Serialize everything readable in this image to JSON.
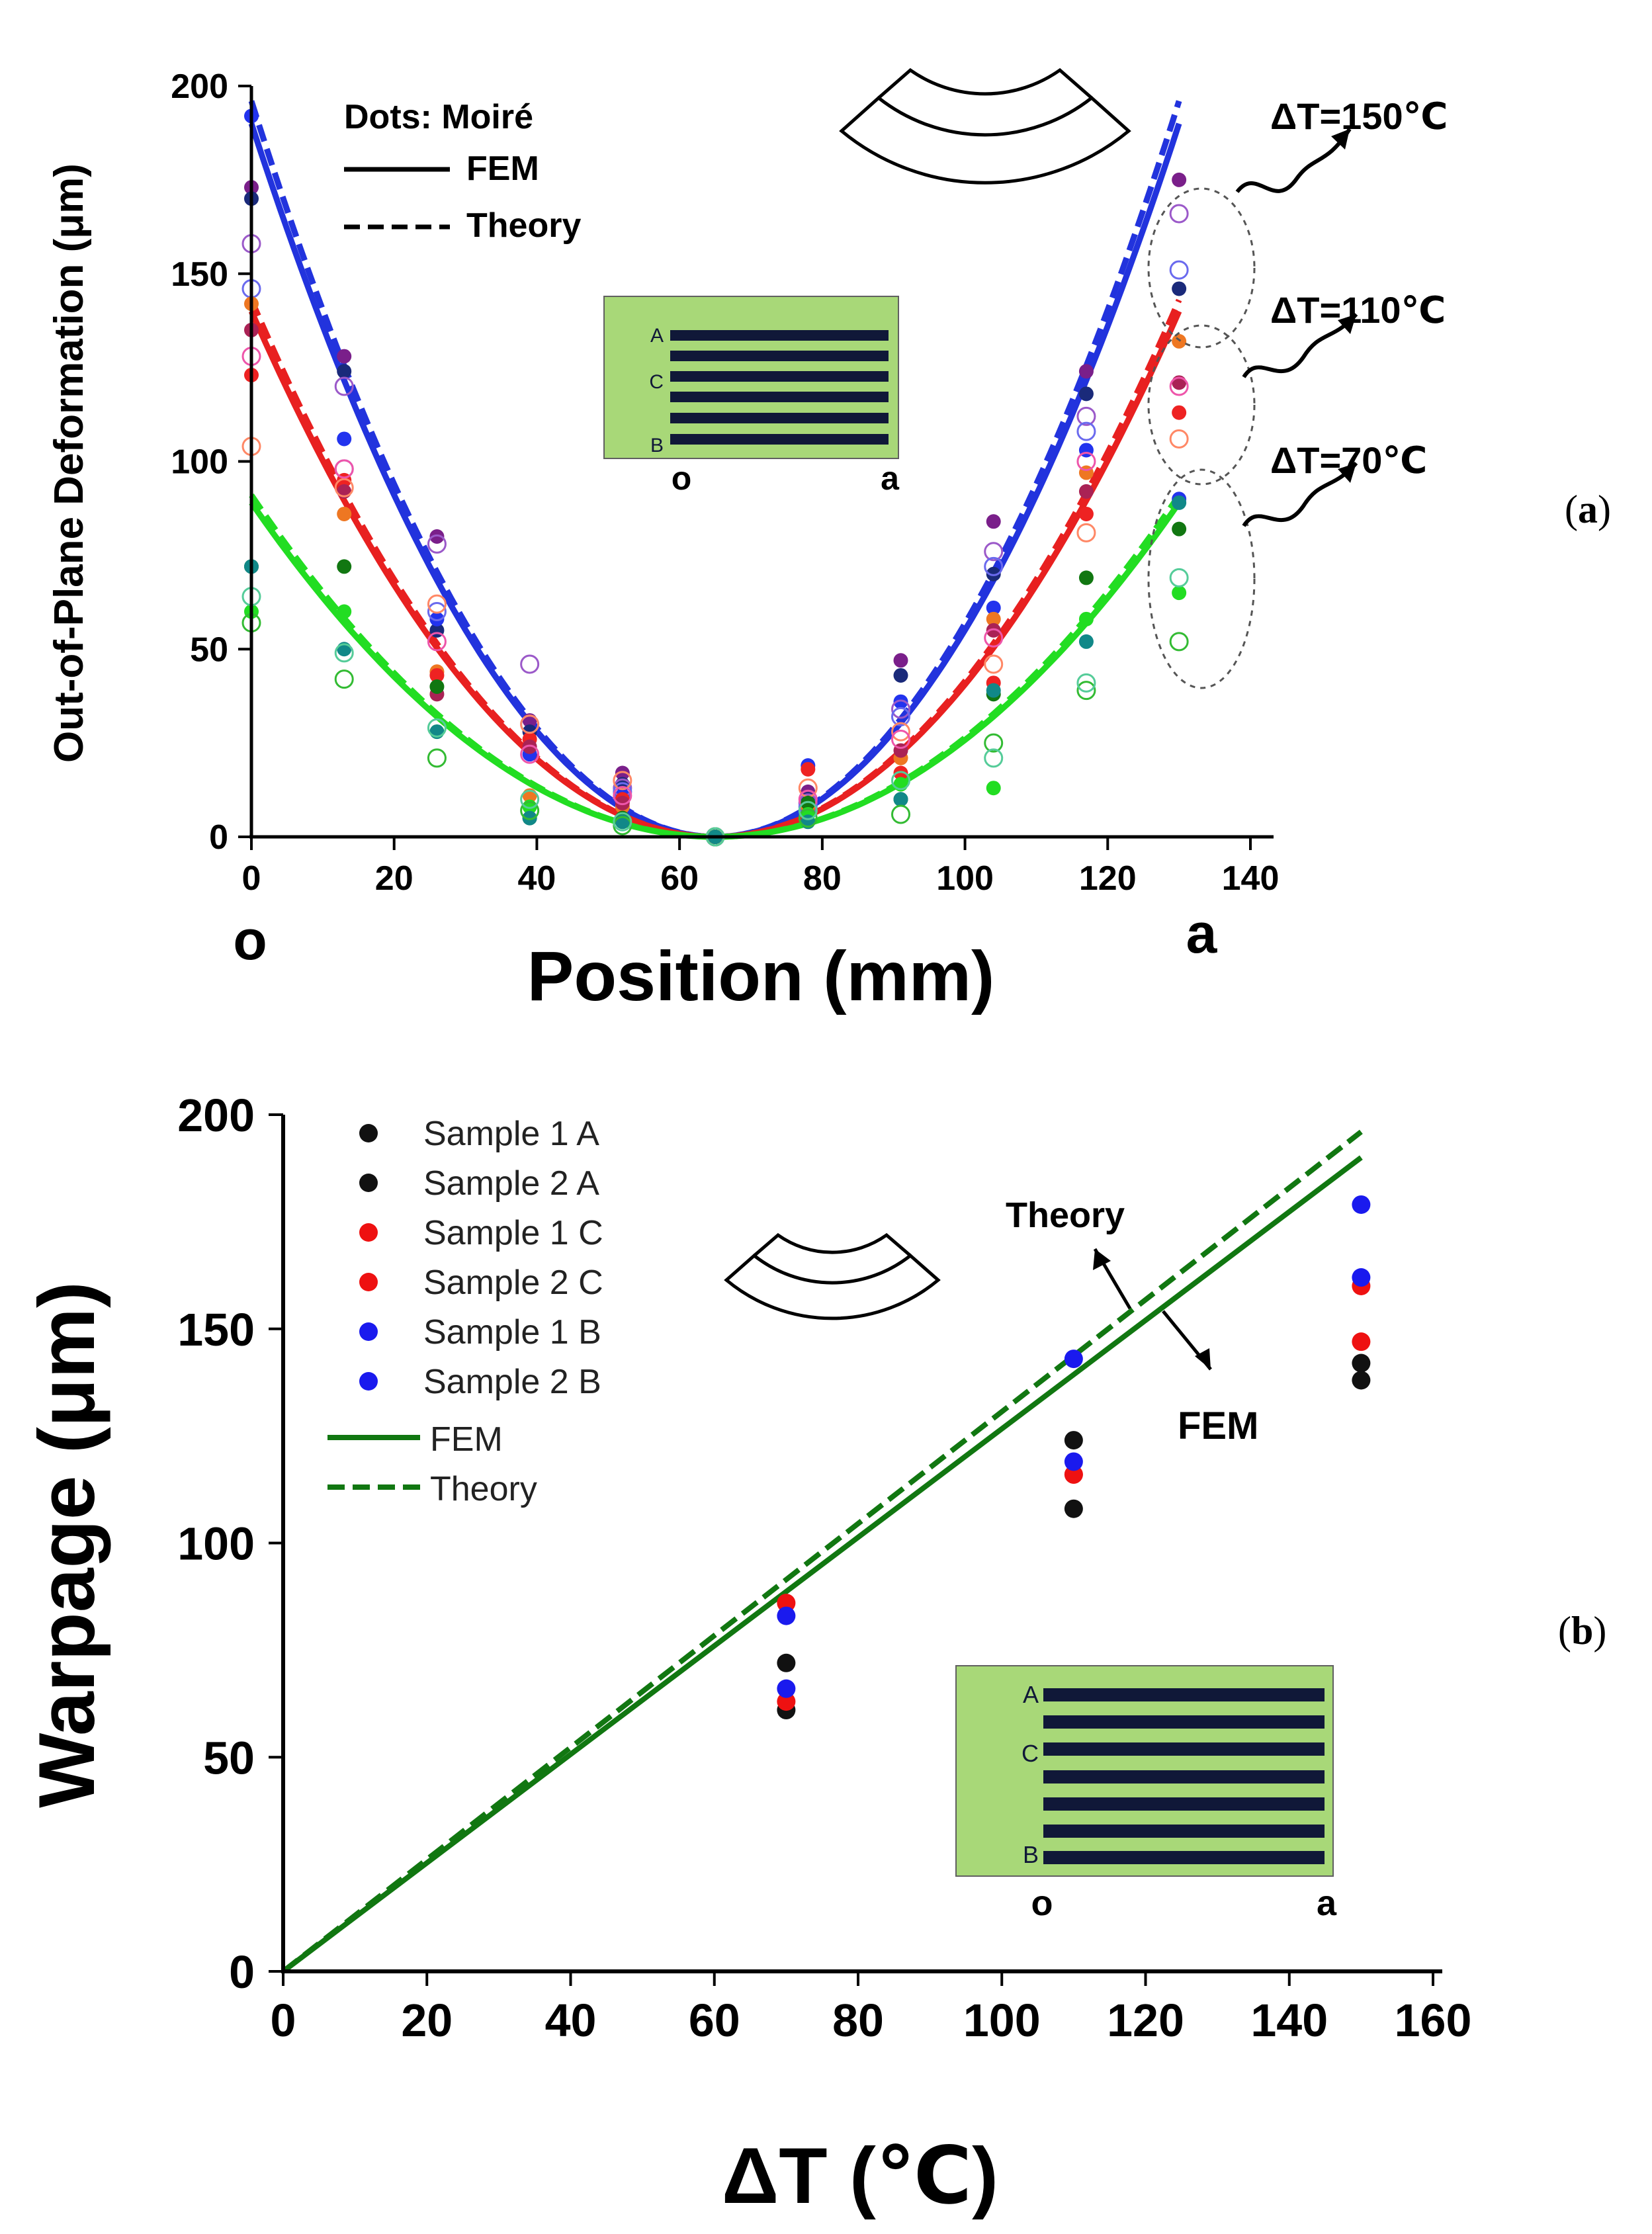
{
  "colors": {
    "c150": "#2233dd",
    "c110": "#e82020",
    "c70": "#22dd22",
    "dark_green": "#117711",
    "panel_green": "#a8d878",
    "stripe": "#101838",
    "s1a": "#111111",
    "s2a": "#111111",
    "s1c": "#ee1111",
    "s2c": "#ee1111",
    "s1b": "#1a1aee",
    "s2b": "#1a1aee"
  },
  "panels": {
    "a": {
      "label": "(a)",
      "label_bold": "a"
    },
    "b": {
      "label": "(b)",
      "label_bold": "b"
    }
  },
  "chart_data": [
    {
      "type": "scatter",
      "subtype": "scatter with fitted curves",
      "panel": "a",
      "xlabel": "Position (mm)",
      "ylabel": "Out-of-Plane Deformation (μm)",
      "xlim": [
        0,
        140
      ],
      "ylim": [
        0,
        200
      ],
      "xticks": [
        0,
        20,
        40,
        60,
        80,
        100,
        120,
        140
      ],
      "yticks": [
        0,
        50,
        100,
        150,
        200
      ],
      "x_end_labels": {
        "start": "o",
        "end": "a"
      },
      "legend": {
        "dots": "Dots: Moiré",
        "solid": "FEM",
        "dashed": "Theory"
      },
      "curve_labels": [
        "ΔT=150℃",
        "ΔT=110℃",
        "ΔT=70℃"
      ],
      "inset": {
        "rows": [
          "A",
          "C",
          "B"
        ],
        "ends": [
          "o",
          "a"
        ]
      },
      "x_positions": [
        0,
        13,
        26,
        39,
        52,
        65,
        78,
        91,
        104,
        117,
        130
      ],
      "curves": [
        {
          "name": "ΔT=150℃",
          "color_key": "c150",
          "vertex": 65,
          "fem": 190,
          "theory": 196
        },
        {
          "name": "ΔT=110℃",
          "color_key": "c110",
          "vertex": 65,
          "fem": 140,
          "theory": 143
        },
        {
          "name": "ΔT=70℃",
          "color_key": "c70",
          "vertex": 65,
          "fem": 89,
          "theory": 91
        }
      ],
      "moire_points": [
        {
          "group": "150-filled",
          "color": "#7a1f8a",
          "filled": true,
          "y": [
            173,
            128,
            80,
            31,
            17,
            0,
            12,
            47,
            84,
            124,
            175
          ]
        },
        {
          "group": "150-filled",
          "color": "#1a2a7a",
          "filled": true,
          "y": [
            170,
            124,
            55,
            28,
            14,
            0,
            10,
            43,
            70,
            118,
            146
          ]
        },
        {
          "group": "150-filled",
          "color": "#2233ee",
          "filled": true,
          "y": [
            192,
            106,
            58,
            22,
            11,
            0,
            19,
            36,
            61,
            103,
            90
          ]
        },
        {
          "group": "150-open",
          "color": "#9b59c9",
          "filled": false,
          "y": [
            158,
            120,
            78,
            46,
            13,
            0,
            9,
            34,
            76,
            112,
            166
          ]
        },
        {
          "group": "150-open",
          "color": "#6a6aee",
          "filled": false,
          "y": [
            146,
            98,
            60,
            30,
            12,
            0,
            8,
            32,
            72,
            108,
            151
          ]
        },
        {
          "group": "110-filled",
          "color": "#ee7722",
          "filled": true,
          "y": [
            142,
            86,
            44,
            11,
            8,
            0,
            8,
            21,
            58,
            97,
            132
          ]
        },
        {
          "group": "110-filled",
          "color": "#ee2222",
          "filled": true,
          "y": [
            123,
            95,
            43,
            26,
            10,
            0,
            18,
            17,
            41,
            86,
            113
          ]
        },
        {
          "group": "110-filled",
          "color": "#aa2255",
          "filled": true,
          "y": [
            135,
            92,
            38,
            24,
            9,
            0,
            6,
            23,
            55,
            92,
            121
          ]
        },
        {
          "group": "110-open",
          "color": "#ff8866",
          "filled": false,
          "y": [
            104,
            93,
            62,
            30,
            15,
            0,
            13,
            28,
            46,
            81,
            106
          ]
        },
        {
          "group": "110-open",
          "color": "#ee55aa",
          "filled": false,
          "y": [
            128,
            98,
            52,
            22,
            11,
            0,
            10,
            26,
            53,
            100,
            120
          ]
        },
        {
          "group": "70-filled",
          "color": "#117711",
          "filled": true,
          "y": [
            72,
            72,
            40,
            5,
            5,
            0,
            9,
            10,
            38,
            69,
            82
          ]
        },
        {
          "group": "70-filled",
          "color": "#22dd22",
          "filled": true,
          "y": [
            60,
            60,
            28,
            8,
            4,
            0,
            6,
            14,
            13,
            58,
            65
          ]
        },
        {
          "group": "70-filled",
          "color": "#118888",
          "filled": true,
          "y": [
            72,
            50,
            28,
            5,
            4,
            0,
            4,
            10,
            39,
            52,
            89
          ]
        },
        {
          "group": "70-open",
          "color": "#33bb33",
          "filled": false,
          "y": [
            57,
            42,
            21,
            7,
            3,
            0,
            5,
            6,
            25,
            39,
            52
          ]
        },
        {
          "group": "70-open",
          "color": "#55cc99",
          "filled": false,
          "y": [
            64,
            49,
            29,
            10,
            4,
            0,
            7,
            15,
            21,
            41,
            69
          ]
        }
      ]
    },
    {
      "type": "scatter",
      "subtype": "scatter with lines",
      "panel": "b",
      "xlabel": "ΔT (℃)",
      "ylabel": "Warpage (μm)",
      "xlim": [
        0,
        160
      ],
      "ylim": [
        0,
        200
      ],
      "xticks": [
        0,
        20,
        40,
        60,
        80,
        100,
        120,
        140,
        160
      ],
      "yticks": [
        0,
        50,
        100,
        150,
        200
      ],
      "series": [
        {
          "name": "Sample 1 A",
          "color_key": "s1a",
          "x": [
            70,
            110,
            150
          ],
          "y": [
            72,
            124,
            142
          ]
        },
        {
          "name": "Sample 2 A",
          "color_key": "s2a",
          "x": [
            70,
            110,
            150
          ],
          "y": [
            61,
            108,
            138
          ]
        },
        {
          "name": "Sample 1 C",
          "color_key": "s1c",
          "x": [
            70,
            110,
            150
          ],
          "y": [
            86,
            116,
            160
          ]
        },
        {
          "name": "Sample 2 C",
          "color_key": "s2c",
          "x": [
            70,
            110,
            150
          ],
          "y": [
            63,
            116,
            147
          ]
        },
        {
          "name": "Sample 1 B",
          "color_key": "s1b",
          "x": [
            70,
            110,
            150
          ],
          "y": [
            83,
            143,
            179
          ]
        },
        {
          "name": "Sample 2 B",
          "color_key": "s2b",
          "x": [
            70,
            110,
            150
          ],
          "y": [
            66,
            119,
            162
          ]
        }
      ],
      "lines": [
        {
          "name": "FEM",
          "style": "solid",
          "x": [
            0,
            150
          ],
          "y": [
            0,
            190
          ]
        },
        {
          "name": "Theory",
          "style": "dashed",
          "x": [
            0,
            150
          ],
          "y": [
            0,
            196
          ]
        }
      ],
      "annotations": [
        "Theory",
        "FEM"
      ],
      "inset": {
        "rows": [
          "A",
          "C",
          "B"
        ],
        "ends": [
          "o",
          "a"
        ]
      }
    }
  ]
}
